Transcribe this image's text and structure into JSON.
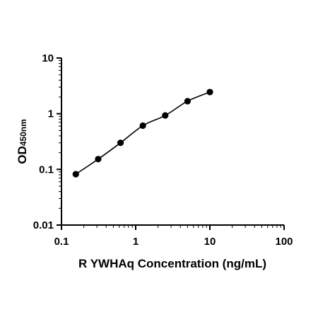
{
  "chart_data": {
    "type": "scatter",
    "title": "",
    "xlabel": "R YWHAq Concentration (ng/mL)",
    "ylabel": "OD",
    "ylabel_subscript": "450nm",
    "xscale": "log",
    "yscale": "log",
    "xlim": [
      0.1,
      100
    ],
    "ylim": [
      0.01,
      10
    ],
    "xticks": [
      0.1,
      1,
      10,
      100
    ],
    "xtick_labels": [
      "0.1",
      "1",
      "10",
      "100"
    ],
    "yticks": [
      0.01,
      0.1,
      1,
      10
    ],
    "ytick_labels": [
      "0.01",
      "0.1",
      "1",
      "10"
    ],
    "grid": false,
    "legend": "none",
    "marker_color": "#000000",
    "line_color": "#000000",
    "series": [
      {
        "x": [
          0.156,
          0.3125,
          0.625,
          1.25,
          2.5,
          5,
          10
        ],
        "y": [
          0.082,
          0.153,
          0.3,
          0.61,
          0.93,
          1.68,
          2.45
        ],
        "fit_curve": true
      }
    ]
  }
}
